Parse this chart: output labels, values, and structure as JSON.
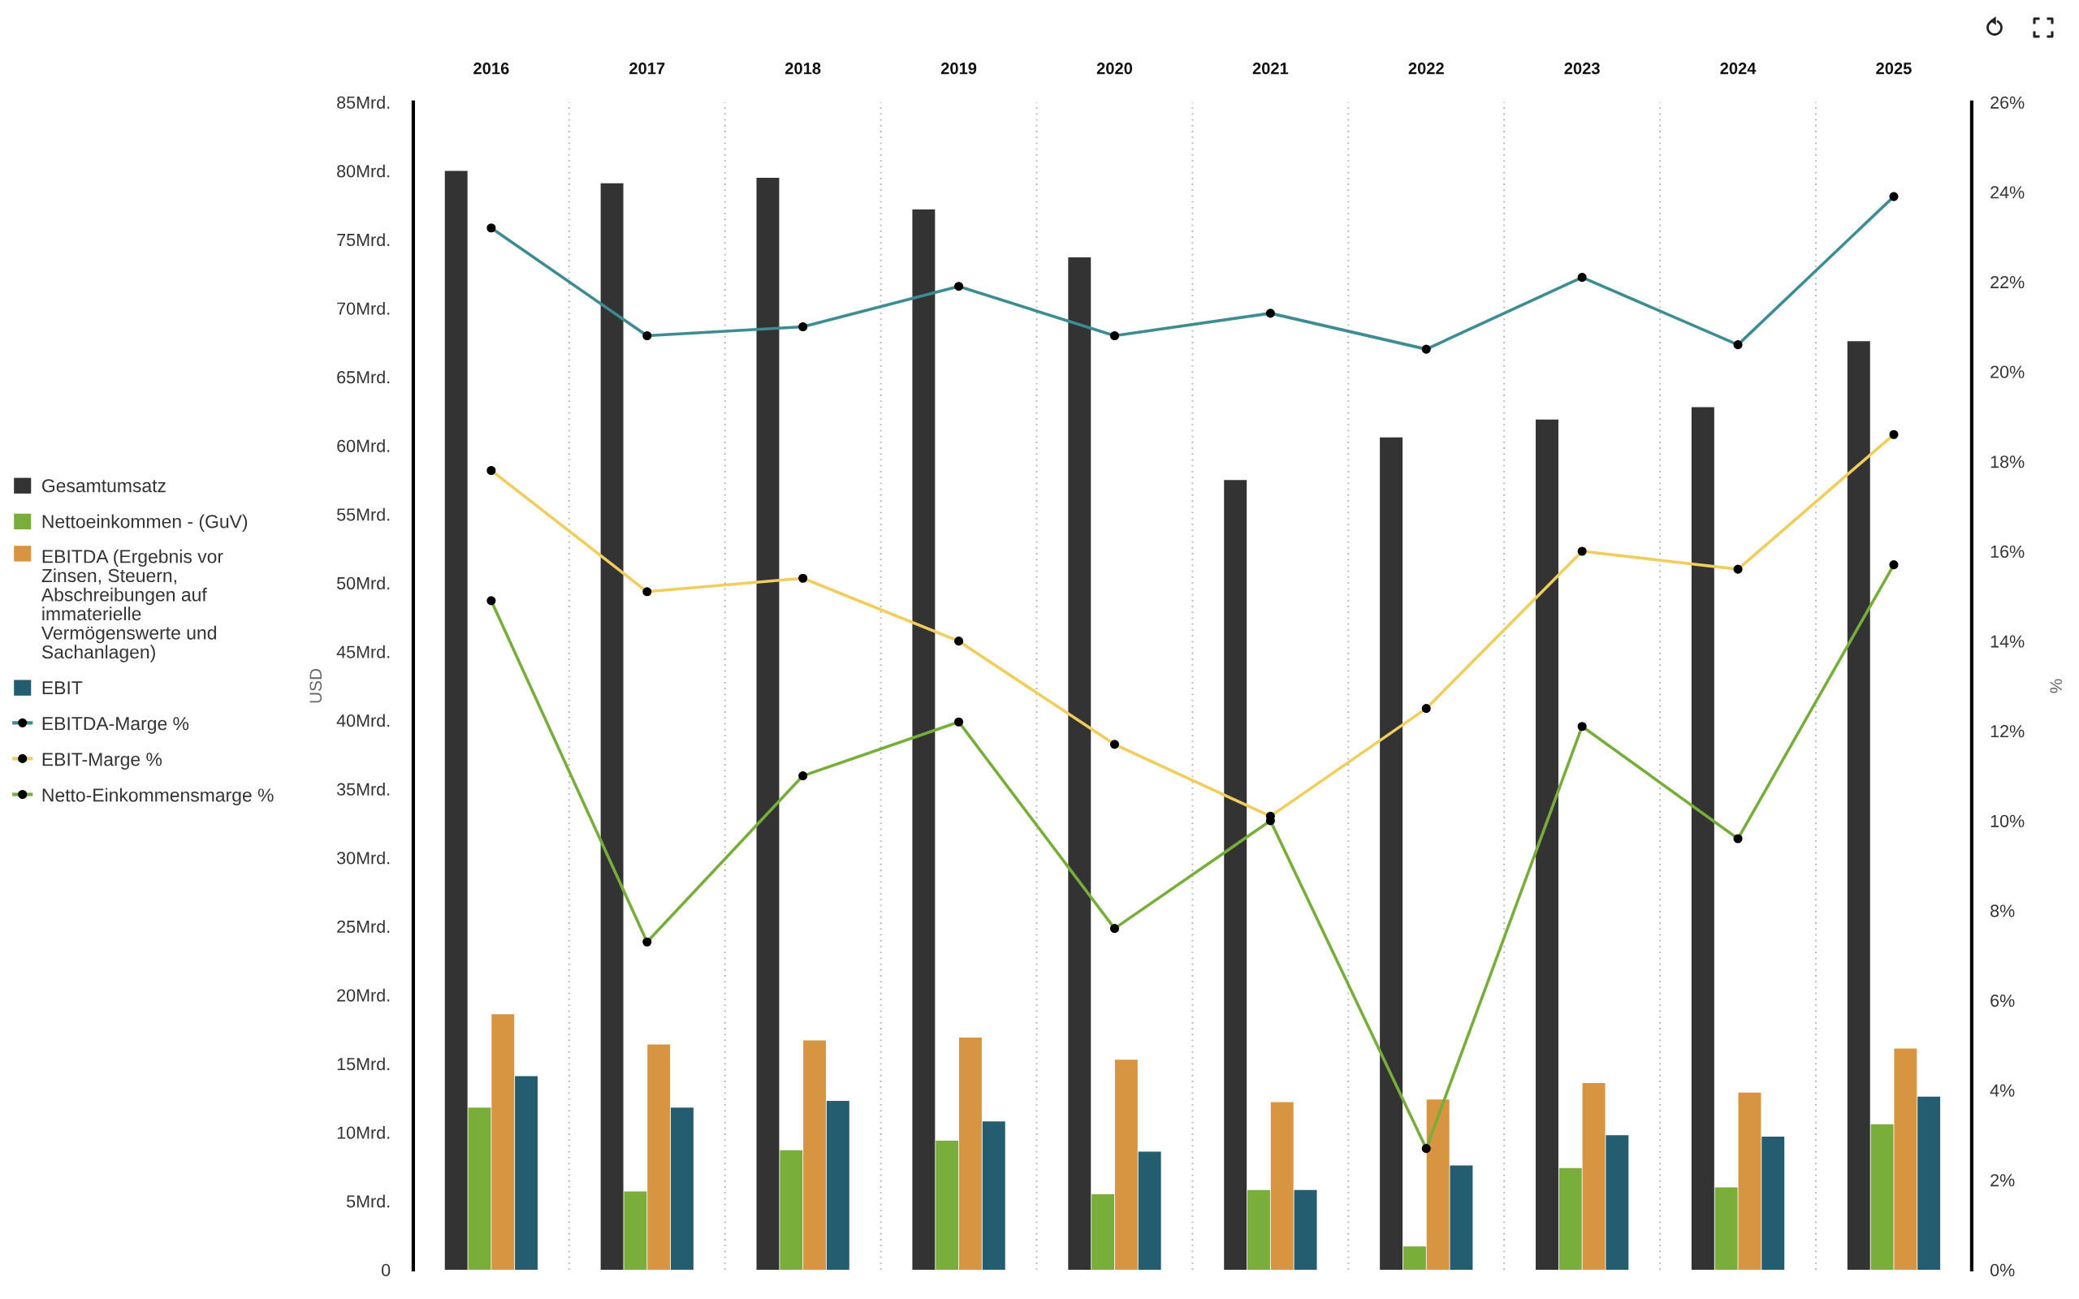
{
  "chart_data": {
    "type": "bar",
    "categories": [
      "2016",
      "2017",
      "2018",
      "2019",
      "2020",
      "2021",
      "2022",
      "2023",
      "2024",
      "2025"
    ],
    "ylabel": "USD",
    "y2label": "%",
    "ylim": [
      0,
      85
    ],
    "yticks": [
      0,
      {
        "value": 5,
        "label": "5Mrd."
      },
      {
        "value": 10,
        "label": "10Mrd."
      },
      {
        "value": 15,
        "label": "15Mrd."
      },
      {
        "value": 20,
        "label": "20Mrd."
      },
      {
        "value": 25,
        "label": "25Mrd."
      },
      {
        "value": 30,
        "label": "30Mrd."
      },
      {
        "value": 35,
        "label": "35Mrd."
      },
      {
        "value": 40,
        "label": "40Mrd."
      },
      {
        "value": 45,
        "label": "45Mrd."
      },
      {
        "value": 50,
        "label": "50Mrd."
      },
      {
        "value": 55,
        "label": "55Mrd."
      },
      {
        "value": 60,
        "label": "60Mrd."
      },
      {
        "value": 65,
        "label": "65Mrd."
      },
      {
        "value": 70,
        "label": "70Mrd."
      },
      {
        "value": 75,
        "label": "75Mrd."
      },
      {
        "value": 80,
        "label": "80Mrd."
      },
      {
        "value": 85,
        "label": "85Mrd."
      }
    ],
    "y2lim": [
      0,
      26
    ],
    "y2ticks": [
      {
        "value": 0,
        "label": "0%"
      },
      {
        "value": 2,
        "label": "2%"
      },
      {
        "value": 4,
        "label": "4%"
      },
      {
        "value": 6,
        "label": "6%"
      },
      {
        "value": 8,
        "label": "8%"
      },
      {
        "value": 10,
        "label": "10%"
      },
      {
        "value": 12,
        "label": "12%"
      },
      {
        "value": 14,
        "label": "14%"
      },
      {
        "value": 16,
        "label": "16%"
      },
      {
        "value": 18,
        "label": "18%"
      },
      {
        "value": 20,
        "label": "20%"
      },
      {
        "value": 22,
        "label": "22%"
      },
      {
        "value": 24,
        "label": "24%"
      },
      {
        "value": 26,
        "label": "26%"
      }
    ],
    "grid": "x",
    "legend": "left",
    "marker": "circle",
    "line_style": "solid",
    "series": [
      {
        "name": "Gesamtumsatz",
        "color": "#333333",
        "values": [
          80.0,
          79.1,
          79.5,
          77.2,
          73.7,
          57.5,
          60.6,
          61.9,
          62.8,
          67.6
        ]
      },
      {
        "name": "Nettoeinkommen - (GuV)",
        "color": "#7aae3a",
        "values": [
          11.8,
          5.7,
          8.7,
          9.4,
          5.5,
          5.8,
          1.7,
          7.4,
          6.0,
          10.6
        ]
      },
      {
        "name": "EBITDA (Ergebnis vor Zinsen, Steuern, Abschreibungen auf immaterielle Vermögenswerte und Sachanlagen)",
        "color": "#d89541",
        "values": [
          18.6,
          16.4,
          16.7,
          16.9,
          15.3,
          12.2,
          12.4,
          13.6,
          12.9,
          16.1
        ]
      },
      {
        "name": "EBIT",
        "color": "#245d70",
        "values": [
          14.1,
          11.8,
          12.3,
          10.8,
          8.6,
          5.8,
          7.6,
          9.8,
          9.7,
          12.6
        ]
      },
      {
        "name": "EBITDA-Marge %",
        "type": "line",
        "axis": "y2",
        "color": "#3d8c92",
        "values": [
          23.2,
          20.8,
          21.0,
          21.9,
          20.8,
          21.3,
          20.5,
          22.1,
          20.6,
          23.9
        ]
      },
      {
        "name": "EBIT-Marge %",
        "type": "line",
        "axis": "y2",
        "color": "#f0cd5c",
        "values": [
          17.8,
          15.1,
          15.4,
          14.0,
          11.7,
          10.1,
          12.5,
          16.0,
          15.6,
          18.6
        ]
      },
      {
        "name": "Netto-Einkommensmarge %",
        "type": "line",
        "axis": "y2",
        "color": "#77ae3b",
        "values": [
          14.9,
          7.3,
          11.0,
          12.2,
          7.6,
          10.0,
          2.7,
          12.1,
          9.6,
          15.7
        ]
      }
    ]
  }
}
